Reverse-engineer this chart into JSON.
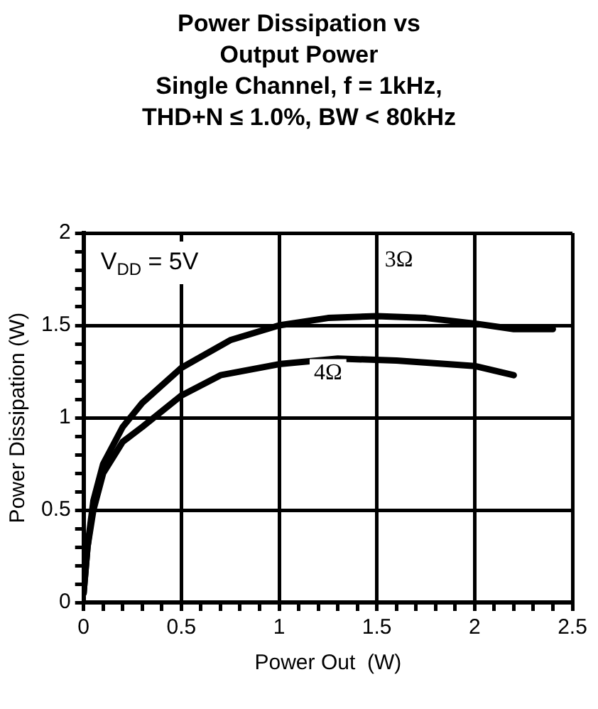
{
  "chart_data": {
    "type": "line",
    "title": "Power Dissipation vs Output Power",
    "subtitle": "Single Channel, f = 1kHz, THD+N ≤ 1.0%, BW < 80kHz",
    "xlabel": "Power Out  (W)",
    "ylabel": "Power Dissipation (W)",
    "annotations": [
      "V$_{DD}$ = 5V",
      "3Ω",
      "4Ω"
    ],
    "series": [
      {
        "color": "#000000",
        "x": [
          0,
          0.02,
          0.05,
          0.1,
          0.2,
          0.3,
          0.5,
          0.75,
          1,
          1.25,
          1.5,
          1.75,
          2,
          2.2,
          2.4
        ],
        "values": [
          0.05,
          0.3,
          0.55,
          0.75,
          0.95,
          1.08,
          1.27,
          1.42,
          1.5,
          1.54,
          1.55,
          1.54,
          1.51,
          1.48,
          1.48
        ]
      },
      {
        "color": "#000000",
        "x": [
          0,
          0.02,
          0.05,
          0.1,
          0.2,
          0.3,
          0.5,
          0.7,
          1,
          1.3,
          1.6,
          2,
          2.2
        ],
        "values": [
          0.05,
          0.3,
          0.5,
          0.7,
          0.87,
          0.95,
          1.12,
          1.23,
          1.29,
          1.32,
          1.31,
          1.28,
          1.23
        ]
      }
    ],
    "xlim": [
      0,
      2.5
    ],
    "xticks": [
      0,
      {
        "value": 0.1,
        "label": null
      },
      {
        "value": 0.2,
        "label": null
      },
      {
        "value": 0.3,
        "label": null
      },
      {
        "value": 0.4,
        "label": null
      },
      0.5,
      {
        "value": 0.6,
        "label": null
      },
      {
        "value": 0.7,
        "label": null
      },
      {
        "value": 0.8,
        "label": null
      },
      {
        "value": 0.9,
        "label": null
      },
      1,
      {
        "value": 1.1,
        "label": null
      },
      {
        "value": 1.2,
        "label": null
      },
      {
        "value": 1.3,
        "label": null
      },
      {
        "value": 1.4,
        "label": null
      },
      1.5,
      {
        "value": 1.6,
        "label": null
      },
      {
        "value": 1.7,
        "label": null
      },
      {
        "value": 1.8,
        "label": null
      },
      {
        "value": 1.9,
        "label": null
      },
      2,
      {
        "value": 2.1,
        "label": null
      },
      {
        "value": 2.2,
        "label": null
      },
      {
        "value": 2.3,
        "label": null
      },
      {
        "value": 2.4,
        "label": null
      },
      2.5
    ],
    "ylim": [
      0,
      2
    ],
    "yticks": [
      0,
      {
        "value": 0.1,
        "label": null
      },
      {
        "value": 0.2,
        "label": null
      },
      {
        "value": 0.3,
        "label": null
      },
      {
        "value": 0.4,
        "label": null
      },
      0.5,
      {
        "value": 0.6,
        "label": null
      },
      {
        "value": 0.7,
        "label": null
      },
      {
        "value": 0.8,
        "label": null
      },
      {
        "value": 0.9,
        "label": null
      },
      1,
      {
        "value": 1.1,
        "label": null
      },
      {
        "value": 1.2,
        "label": null
      },
      {
        "value": 1.3,
        "label": null
      },
      {
        "value": 1.4,
        "label": null
      },
      1.5,
      {
        "value": 1.6,
        "label": null
      },
      {
        "value": 1.7,
        "label": null
      },
      {
        "value": 1.8,
        "label": null
      },
      {
        "value": 1.9,
        "label": null
      },
      2
    ],
    "grid": true,
    "legend": false,
    "marker": "none",
    "line_style": "solid"
  }
}
